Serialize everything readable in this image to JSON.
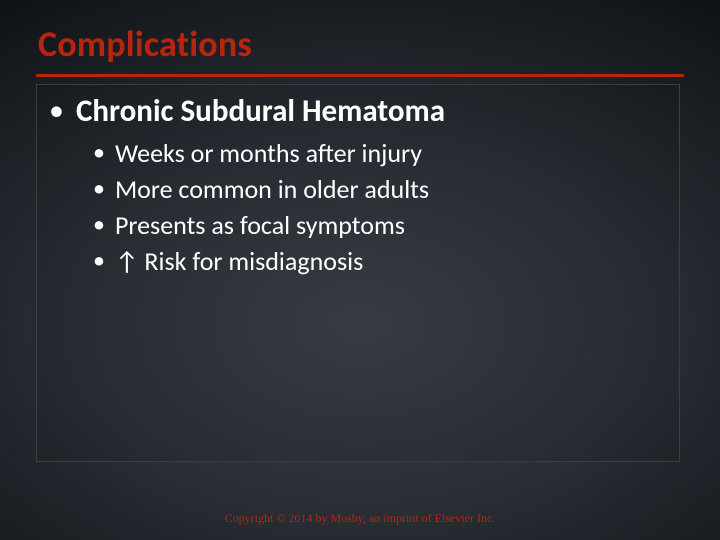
{
  "slide": {
    "title": "Complications",
    "title_color": "#b9240f",
    "title_rule_color": "#b9240f",
    "box_border_color": "#3a3d41",
    "bullets": {
      "lvl1": {
        "text": "Chronic Subdural Hematoma"
      },
      "lvl2": [
        {
          "text": "Weeks or months after injury"
        },
        {
          "text": "More common in older adults"
        },
        {
          "text": "Presents as focal symptoms"
        },
        {
          "text": "↑ Risk for misdiagnosis"
        }
      ]
    },
    "bullet_glyph": "•",
    "text_color": "#ffffff",
    "footer": {
      "text": "Copyright © 2014 by Mosby, an imprint of Elsevier Inc.",
      "color": "#b9240f"
    }
  }
}
